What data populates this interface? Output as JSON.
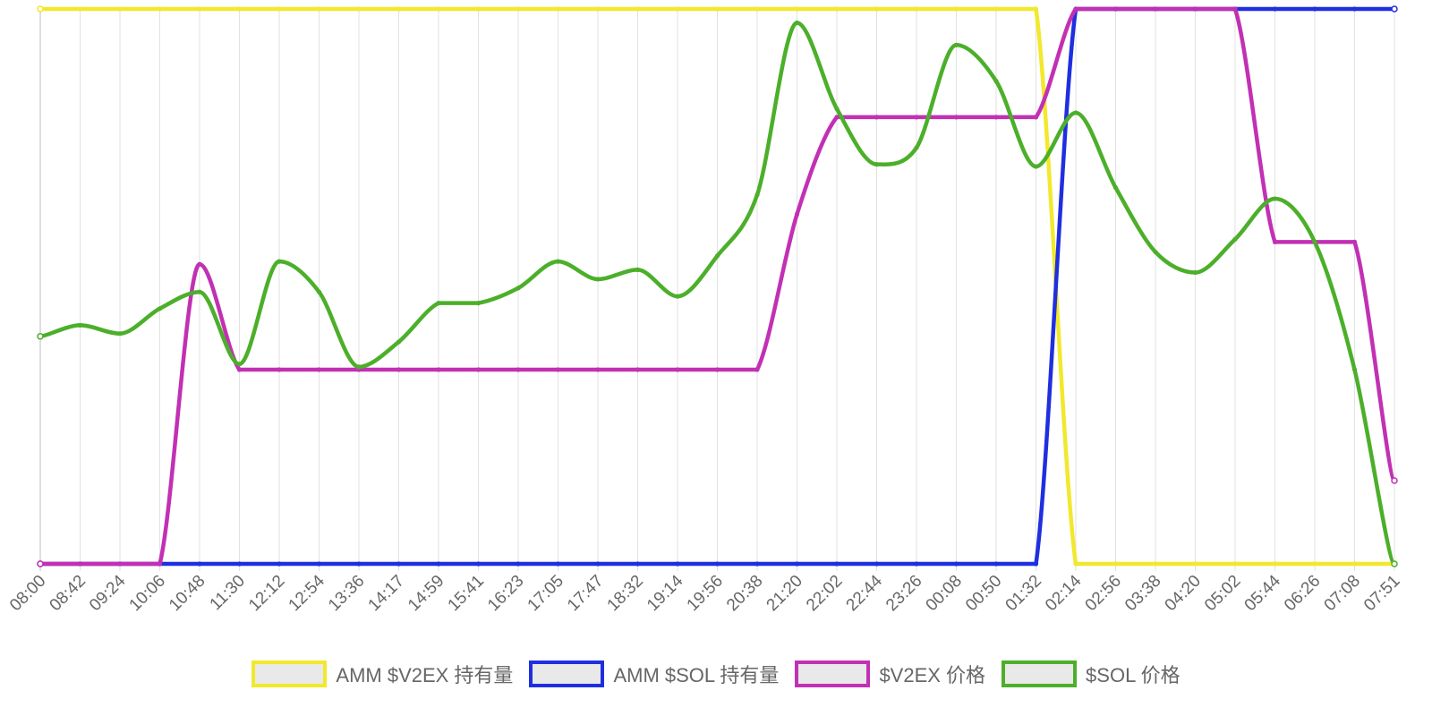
{
  "chart_data": {
    "type": "line",
    "title": "",
    "xlabel": "",
    "ylabel": "",
    "grid": true,
    "legend_position": "bottom",
    "categories": [
      "08:00",
      "08:42",
      "09:24",
      "10:06",
      "10:48",
      "11:30",
      "12:12",
      "12:54",
      "13:36",
      "14:17",
      "14:59",
      "15:41",
      "16:23",
      "17:05",
      "17:47",
      "18:32",
      "19:14",
      "19:56",
      "20:38",
      "21:20",
      "22:02",
      "22:44",
      "23:26",
      "00:08",
      "00:50",
      "01:32",
      "02:14",
      "02:56",
      "03:38",
      "04:20",
      "05:02",
      "05:44",
      "06:26",
      "07:08",
      "07:51"
    ],
    "series": [
      {
        "name": "AMM $V2EX 持有量",
        "color": "#f2e82c",
        "values": [
          1,
          1,
          1,
          1,
          1,
          1,
          1,
          1,
          1,
          1,
          1,
          1,
          1,
          1,
          1,
          1,
          1,
          1,
          1,
          1,
          1,
          1,
          1,
          1,
          1,
          1,
          0,
          0,
          0,
          0,
          0,
          0,
          0,
          0,
          0
        ]
      },
      {
        "name": "AMM $SOL 持有量",
        "color": "#1f2fe0",
        "values": [
          0,
          0,
          0,
          0,
          0,
          0,
          0,
          0,
          0,
          0,
          0,
          0,
          0,
          0,
          0,
          0,
          0,
          0,
          0,
          0,
          0,
          0,
          0,
          0,
          0,
          0,
          1,
          1,
          1,
          1,
          1,
          1,
          1,
          1,
          1
        ]
      },
      {
        "name": "$V2EX 价格",
        "color": "#c230b4",
        "values": [
          0,
          0,
          0,
          0,
          0.54,
          0.35,
          0.35,
          0.35,
          0.35,
          0.35,
          0.35,
          0.35,
          0.35,
          0.35,
          0.35,
          0.35,
          0.35,
          0.35,
          0.35,
          0.63,
          0.805,
          0.805,
          0.805,
          0.805,
          0.805,
          0.805,
          1,
          1,
          1,
          1,
          1,
          0.58,
          0.58,
          0.58,
          0.15
        ]
      },
      {
        "name": "$SOL 价格",
        "color": "#4caf2a",
        "values": [
          0.41,
          0.43,
          0.415,
          0.46,
          0.49,
          0.36,
          0.545,
          0.49,
          0.355,
          0.4,
          0.47,
          0.47,
          0.497,
          0.545,
          0.513,
          0.53,
          0.482,
          0.555,
          0.665,
          0.975,
          0.82,
          0.72,
          0.75,
          0.935,
          0.87,
          0.716,
          0.813,
          0.678,
          0.562,
          0.525,
          0.585,
          0.658,
          0.58,
          0.35,
          0
        ]
      }
    ],
    "ylim": [
      0,
      1
    ]
  }
}
